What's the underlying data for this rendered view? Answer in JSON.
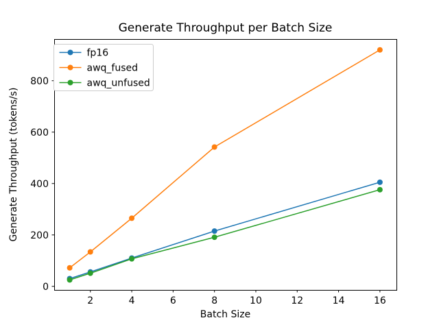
{
  "figure": {
    "title": "Generate Throughput per Batch Size",
    "xlabel": "Batch Size",
    "ylabel": "Generate Throughput (tokens/s)",
    "background": "#ffffff"
  },
  "chart_data": {
    "type": "line",
    "title": "Generate Throughput per Batch Size",
    "xlabel": "Batch Size",
    "ylabel": "Generate Throughput (tokens/s)",
    "x": [
      1,
      2,
      4,
      8,
      16
    ],
    "series": [
      {
        "name": "fp16",
        "color": "#1f77b4",
        "values": [
          30,
          56,
          110,
          215,
          405
        ]
      },
      {
        "name": "awq_fused",
        "color": "#ff7f0e",
        "values": [
          72,
          134,
          265,
          542,
          920
        ]
      },
      {
        "name": "awq_unfused",
        "color": "#2ca02c",
        "values": [
          25,
          51,
          107,
          191,
          376
        ]
      }
    ],
    "xticks": [
      2,
      4,
      6,
      8,
      10,
      12,
      14,
      16
    ],
    "yticks": [
      0,
      200,
      400,
      600,
      800
    ],
    "xlim": [
      0.25,
      16.8
    ],
    "ylim": [
      -14,
      962
    ],
    "grid": false,
    "legend_position": "upper left",
    "marker": "o",
    "line_width": 1.5,
    "marker_radius": 4,
    "axis_color": "#000000",
    "legend_border_color": "#cccccc"
  }
}
